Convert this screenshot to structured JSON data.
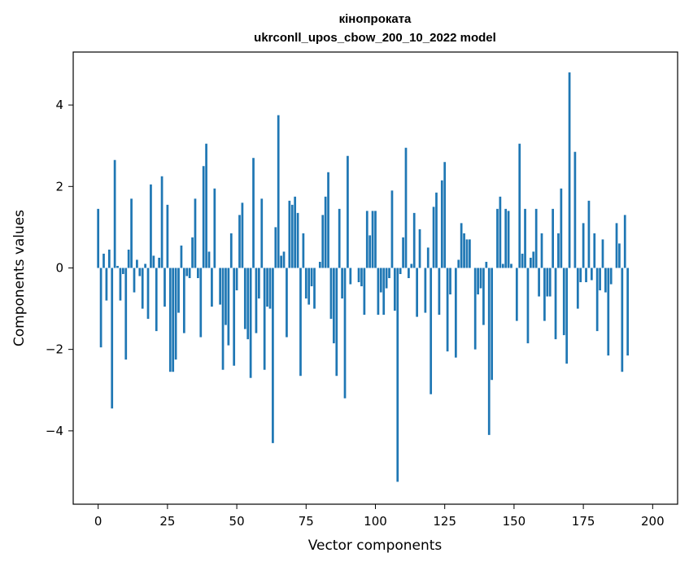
{
  "chart_data": {
    "type": "bar",
    "title_line1": "кінопроката",
    "title_line2": "ukrconll_upos_cbow_200_10_2022 model",
    "xlabel": "Vector components",
    "ylabel": "Components values",
    "xlim": [
      -9,
      209
    ],
    "ylim": [
      -5.8,
      5.3
    ],
    "xticks": [
      0,
      25,
      50,
      75,
      100,
      125,
      150,
      175,
      200
    ],
    "yticks": [
      -4,
      -2,
      0,
      2,
      4
    ],
    "ytick_labels": [
      "−4",
      "−2",
      "0",
      "2",
      "4"
    ],
    "bar_color": "#1f77b4",
    "grid": false,
    "values": [
      1.45,
      -1.95,
      0.35,
      -0.8,
      0.45,
      -3.45,
      2.65,
      0.05,
      -0.8,
      -0.15,
      -2.25,
      0.45,
      1.7,
      -0.6,
      0.2,
      -0.2,
      -1.0,
      0.1,
      -1.25,
      2.05,
      0.3,
      -1.55,
      0.25,
      2.25,
      -0.95,
      1.55,
      -2.55,
      -2.55,
      -2.25,
      -1.1,
      0.55,
      -1.6,
      -0.2,
      -0.25,
      0.75,
      1.7,
      -0.25,
      -1.7,
      2.5,
      3.05,
      0.4,
      -0.95,
      1.95,
      0.0,
      -0.9,
      -2.5,
      -1.4,
      -1.9,
      0.85,
      -2.4,
      -0.55,
      1.3,
      1.6,
      -1.5,
      -1.75,
      -2.7,
      2.7,
      -1.6,
      -0.75,
      1.7,
      -2.5,
      -0.95,
      -1.0,
      -4.3,
      1.0,
      3.75,
      0.3,
      0.4,
      -1.7,
      1.65,
      1.55,
      1.75,
      1.35,
      -2.65,
      0.85,
      -0.75,
      -0.9,
      -0.45,
      -1.0,
      0.0,
      0.15,
      1.3,
      1.75,
      2.35,
      -1.25,
      -1.85,
      -2.65,
      1.45,
      -0.75,
      -3.2,
      2.75,
      -0.4,
      0.0,
      0.0,
      -0.35,
      -0.45,
      -1.15,
      1.4,
      0.8,
      1.4,
      1.4,
      -1.15,
      -0.6,
      -1.15,
      -0.5,
      -0.25,
      1.9,
      -1.05,
      -5.25,
      -0.15,
      0.75,
      2.95,
      -0.25,
      0.1,
      1.35,
      -1.2,
      0.95,
      0.0,
      -1.1,
      0.5,
      -3.1,
      1.5,
      1.85,
      -1.15,
      2.15,
      2.6,
      -2.05,
      -0.65,
      0.0,
      -2.2,
      0.2,
      1.1,
      0.85,
      0.7,
      0.7,
      0.0,
      -2.0,
      -0.65,
      -0.5,
      -1.4,
      0.15,
      -4.1,
      -2.75,
      0.0,
      1.45,
      1.75,
      0.1,
      1.45,
      1.4,
      0.1,
      0.0,
      -1.3,
      3.05,
      0.35,
      1.45,
      -1.85,
      0.25,
      0.4,
      1.45,
      -0.7,
      0.85,
      -1.3,
      -0.7,
      -0.7,
      1.45,
      -1.75,
      0.85,
      1.95,
      -1.65,
      -2.35,
      4.8,
      0.0,
      2.85,
      -1.0,
      -0.35,
      1.1,
      -0.35,
      1.65,
      -0.3,
      0.85,
      -1.55,
      -0.55,
      0.7,
      -0.6,
      -2.15,
      -0.4,
      0.0,
      1.1,
      0.6,
      -2.55,
      1.3,
      -2.15
    ]
  }
}
